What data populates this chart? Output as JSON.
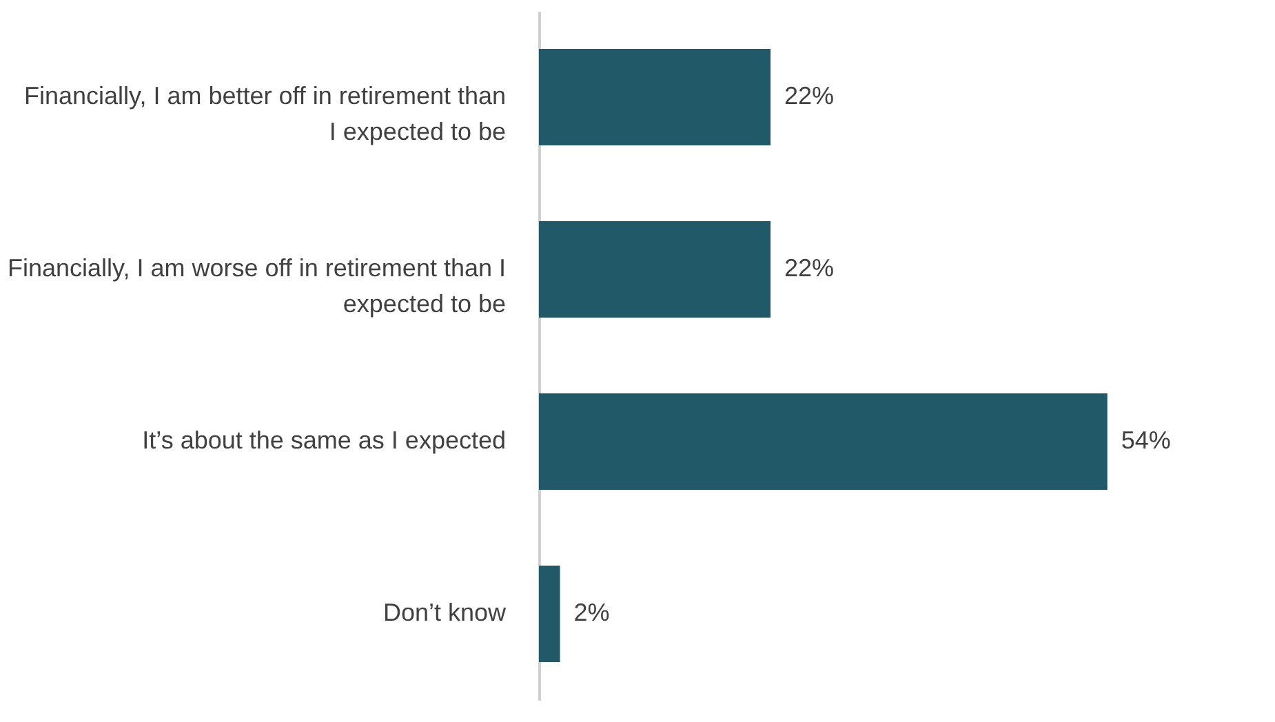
{
  "chart_data": {
    "type": "bar",
    "orientation": "horizontal",
    "categories": [
      "Financially, I am better off in retirement than I expected to be",
      "Financially, I am worse off in retirement than I expected to be",
      "It’s about the same as I expected",
      "Don’t know"
    ],
    "values": [
      22,
      22,
      54,
      2
    ],
    "color": "#215968",
    "value_labels": [
      "22%",
      "22%",
      "54%",
      "2%"
    ],
    "grid": false
  }
}
